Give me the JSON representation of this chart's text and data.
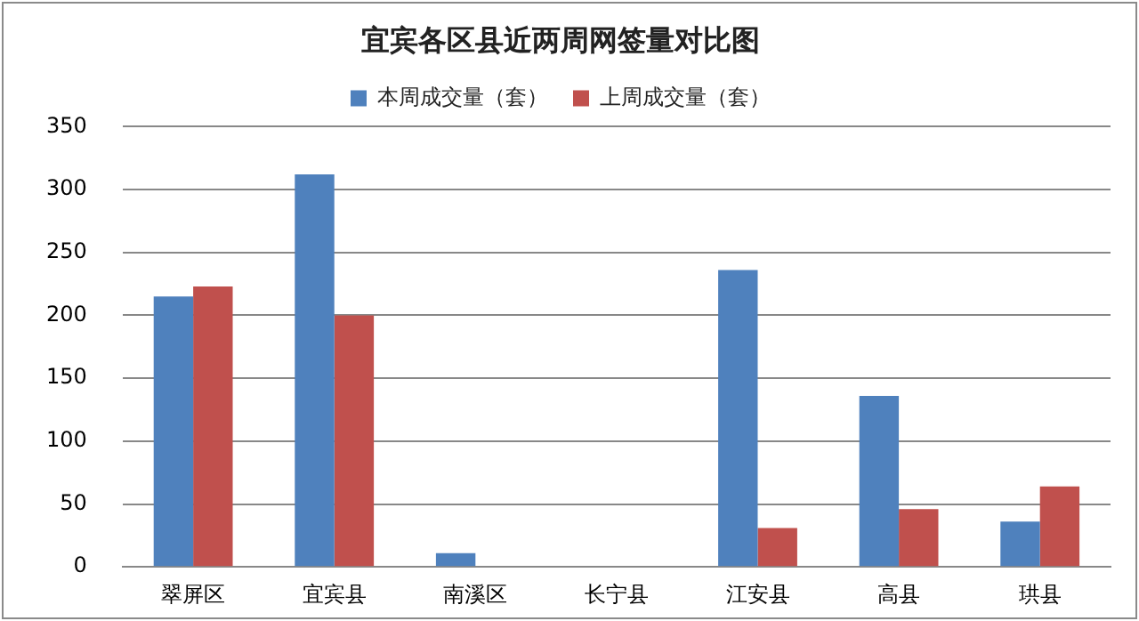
{
  "chart_data": {
    "type": "bar",
    "title": "宜宾各区县近两周网签量对比图",
    "categories": [
      "翠屏区",
      "宜宾县",
      "南溪区",
      "长宁县",
      "江安县",
      "高县",
      "珙县"
    ],
    "series": [
      {
        "name": "本周成交量（套）",
        "color": "#4f81bd",
        "values": [
          215,
          312,
          11,
          0,
          236,
          136,
          36
        ]
      },
      {
        "name": "上周成交量（套）",
        "color": "#c0504d",
        "values": [
          223,
          200,
          0,
          0,
          31,
          46,
          64
        ]
      }
    ],
    "ylim": [
      0,
      350
    ],
    "yticks": [
      0,
      50,
      100,
      150,
      200,
      250,
      300,
      350
    ],
    "grid": "y",
    "legend": "top"
  }
}
